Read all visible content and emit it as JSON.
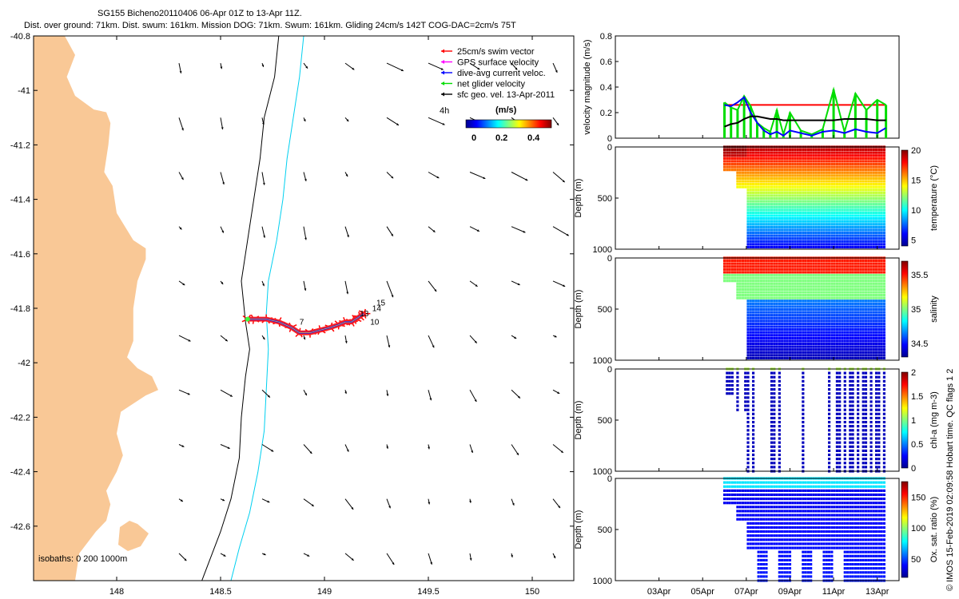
{
  "header": {
    "line1": "SG155 Bicheno20110406 06-Apr 01Z to 13-Apr 11Z.",
    "line2": "Dist. over ground: 71km. Dist. swum: 161km. Mission DOG: 71km. Swum: 161km. Gliding 24cm/s 142T COG-DAC=2cm/s 75T"
  },
  "credit": "© IMOS 15-Feb-2019 02:09:58 Hobart time. QC flags 1  2",
  "colors": {
    "land": "#f9c896",
    "swim_vector": "#ff0000",
    "gps_velocity": "#ff00ff",
    "dive_avg": "#0000ff",
    "net_velocity": "#00dd00",
    "isobath_200": "#000000",
    "isobath_1000": "#00d0f0",
    "track": "#ff2020"
  },
  "icons": [
    "arrow-icon",
    "colorbar"
  ],
  "chart_data": [
    {
      "type": "map",
      "xlim": [
        147.6,
        150.2
      ],
      "ylim": [
        -42.8,
        -40.8
      ],
      "xticks": [
        148,
        148.5,
        149,
        149.5,
        150
      ],
      "xticklabels": [
        "148",
        "148.5",
        "149",
        "149.5",
        "150"
      ],
      "yticks": [
        -40.8,
        -41,
        -41.2,
        -41.4,
        -41.6,
        -41.8,
        -42,
        -42.2,
        -42.4,
        -42.6
      ],
      "yticklabels": [
        "-40.8",
        "-41",
        "-41.2",
        "-41.4",
        "-41.6",
        "-41.8",
        "-42",
        "-42.2",
        "-42.4",
        "-42.6"
      ],
      "legend": [
        {
          "label": "25cm/s swim vector",
          "color": "#ff0000"
        },
        {
          "label": "GPS surface velocity",
          "color": "#ff00ff"
        },
        {
          "label": "dive-avg current veloc.",
          "color": "#0000ff"
        },
        {
          "label": "net glider velocity",
          "color": "#00dd00"
        },
        {
          "label": "sfc geo. vel. 13-Apr-2011",
          "color": "#000000"
        }
      ],
      "legend_extra": "4h",
      "colorbar": {
        "label": "(m/s)",
        "ticks": [
          "0",
          "0.2",
          "0.4"
        ],
        "range": [
          0,
          0.5
        ]
      },
      "isobath_label": "isobaths: 0   200  1000m",
      "track_labels": [
        "7",
        "10",
        "13",
        "14",
        "15"
      ],
      "track": [
        [
          148.63,
          -41.84
        ],
        [
          148.66,
          -41.84
        ],
        [
          148.72,
          -41.84
        ],
        [
          148.78,
          -41.85
        ],
        [
          148.84,
          -41.87
        ],
        [
          148.88,
          -41.89
        ],
        [
          148.93,
          -41.89
        ],
        [
          148.98,
          -41.88
        ],
        [
          149.03,
          -41.87
        ],
        [
          149.07,
          -41.86
        ],
        [
          149.1,
          -41.85
        ],
        [
          149.13,
          -41.85
        ],
        [
          149.15,
          -41.84
        ],
        [
          149.17,
          -41.83
        ],
        [
          149.19,
          -41.82
        ]
      ],
      "coast": [
        [
          147.6,
          -40.8
        ],
        [
          147.75,
          -40.8
        ],
        [
          147.8,
          -40.87
        ],
        [
          147.76,
          -40.95
        ],
        [
          147.8,
          -41.02
        ],
        [
          147.89,
          -41.07
        ],
        [
          147.95,
          -41.08
        ],
        [
          147.97,
          -41.12
        ],
        [
          147.96,
          -41.2
        ],
        [
          147.94,
          -41.3
        ],
        [
          147.98,
          -41.35
        ],
        [
          148.0,
          -41.45
        ],
        [
          148.08,
          -41.55
        ],
        [
          148.14,
          -41.58
        ],
        [
          148.14,
          -41.62
        ],
        [
          148.1,
          -41.7
        ],
        [
          148.08,
          -41.8
        ],
        [
          148.08,
          -41.92
        ],
        [
          148.05,
          -41.98
        ],
        [
          148.1,
          -42.02
        ],
        [
          148.17,
          -42.05
        ],
        [
          148.2,
          -42.1
        ],
        [
          148.14,
          -42.12
        ],
        [
          148.02,
          -42.18
        ],
        [
          148.0,
          -42.26
        ],
        [
          148.03,
          -42.34
        ],
        [
          148.0,
          -42.4
        ],
        [
          147.95,
          -42.47
        ],
        [
          147.97,
          -42.52
        ],
        [
          147.95,
          -42.58
        ],
        [
          147.9,
          -42.62
        ],
        [
          147.82,
          -42.7
        ],
        [
          147.8,
          -42.8
        ],
        [
          147.6,
          -42.8
        ]
      ],
      "iso200": [
        [
          148.78,
          -40.8
        ],
        [
          148.76,
          -40.95
        ],
        [
          148.71,
          -41.1
        ],
        [
          148.69,
          -41.25
        ],
        [
          148.66,
          -41.4
        ],
        [
          148.63,
          -41.55
        ],
        [
          148.6,
          -41.7
        ],
        [
          148.62,
          -41.85
        ],
        [
          148.64,
          -41.95
        ],
        [
          148.62,
          -42.05
        ],
        [
          148.6,
          -42.2
        ],
        [
          148.59,
          -42.35
        ],
        [
          148.55,
          -42.5
        ],
        [
          148.5,
          -42.62
        ],
        [
          148.45,
          -42.72
        ],
        [
          148.41,
          -42.8
        ]
      ],
      "iso1000": [
        [
          148.9,
          -40.8
        ],
        [
          148.88,
          -40.95
        ],
        [
          148.85,
          -41.1
        ],
        [
          148.82,
          -41.25
        ],
        [
          148.8,
          -41.4
        ],
        [
          148.77,
          -41.55
        ],
        [
          148.73,
          -41.7
        ],
        [
          148.72,
          -41.82
        ],
        [
          148.73,
          -41.95
        ],
        [
          148.72,
          -42.1
        ],
        [
          148.71,
          -42.25
        ],
        [
          148.68,
          -42.4
        ],
        [
          148.64,
          -42.55
        ],
        [
          148.59,
          -42.68
        ],
        [
          148.55,
          -42.8
        ]
      ]
    },
    {
      "type": "line",
      "ylabel": "velocity magnitude (m/s)",
      "ylim": [
        0,
        0.8
      ],
      "yticks": [
        "0",
        "0.2",
        "0.4",
        "0.6",
        "0.8"
      ],
      "x": [
        "06Apr",
        "06.3Apr",
        "06.6Apr",
        "06.9Apr",
        "07.2Apr",
        "07.5Apr",
        "07.8Apr",
        "08.1Apr",
        "08.4Apr",
        "08.7Apr",
        "09.0Apr",
        "09.5Apr",
        "10.0Apr",
        "10.5Apr",
        "11.0Apr",
        "11.5Apr",
        "12.0Apr",
        "12.5Apr",
        "13.0Apr",
        "13.4Apr"
      ],
      "series": [
        {
          "color": "#ff0000",
          "values": [
            0.26,
            0.26,
            0.26,
            0.26,
            0.26,
            0.26,
            0.26,
            0.26,
            0.26,
            0.26,
            0.26,
            0.26,
            0.26,
            0.26,
            0.26,
            0.26,
            0.26,
            0.26,
            0.26,
            0.26
          ]
        },
        {
          "color": "#00dd00",
          "values": [
            0.28,
            0.24,
            0.22,
            0.33,
            0.25,
            0.12,
            0.08,
            0.05,
            0.22,
            0.03,
            0.2,
            0.06,
            0.03,
            0.07,
            0.38,
            0.05,
            0.35,
            0.22,
            0.3,
            0.26
          ]
        },
        {
          "color": "#0000ff",
          "values": [
            0.26,
            0.25,
            0.28,
            0.32,
            0.2,
            0.12,
            0.06,
            0.03,
            0.05,
            0.02,
            0.06,
            0.04,
            0.02,
            0.05,
            0.06,
            0.04,
            0.07,
            0.05,
            0.04,
            0.08
          ]
        },
        {
          "color": "#000000",
          "values": [
            0.09,
            0.11,
            0.12,
            0.15,
            0.17,
            0.17,
            0.16,
            0.15,
            0.15,
            0.14,
            0.14,
            0.14,
            0.14,
            0.14,
            0.14,
            0.15,
            0.15,
            0.15,
            0.14,
            0.14
          ]
        }
      ]
    },
    {
      "type": "heatmap",
      "ylabel": "Depth (m)",
      "yticks": [
        "0",
        "500",
        "1000"
      ],
      "ylim": [
        1000,
        0
      ],
      "colorbar_label": "temperature (°C)",
      "colorbar_ticks": [
        "20",
        "15",
        "10",
        "5"
      ],
      "range": [
        4,
        20
      ]
    },
    {
      "type": "heatmap",
      "ylabel": "Depth (m)",
      "yticks": [
        "0",
        "500",
        "1000"
      ],
      "ylim": [
        1000,
        0
      ],
      "colorbar_label": "salinity",
      "colorbar_ticks": [
        "35.5",
        "35",
        "34.5"
      ],
      "range": [
        34.3,
        35.7
      ]
    },
    {
      "type": "heatmap",
      "ylabel": "Depth (m)",
      "yticks": [
        "0",
        "500",
        "1000"
      ],
      "ylim": [
        1000,
        0
      ],
      "colorbar_label": "chl-a (mg m-3)",
      "colorbar_ticks": [
        "2",
        "1.5",
        "1",
        "0.5",
        "0"
      ],
      "range": [
        0,
        2
      ]
    },
    {
      "type": "heatmap",
      "ylabel": "Depth (m)",
      "yticks": [
        "0",
        "500",
        "1000"
      ],
      "ylim": [
        1000,
        0
      ],
      "colorbar_label": "Ox. sat. ratio (%)",
      "colorbar_ticks": [
        "150",
        "100",
        "50"
      ],
      "range": [
        20,
        175
      ],
      "xticks": [
        "03Apr",
        "05Apr",
        "07Apr",
        "09Apr",
        "11Apr",
        "13Apr"
      ]
    }
  ]
}
